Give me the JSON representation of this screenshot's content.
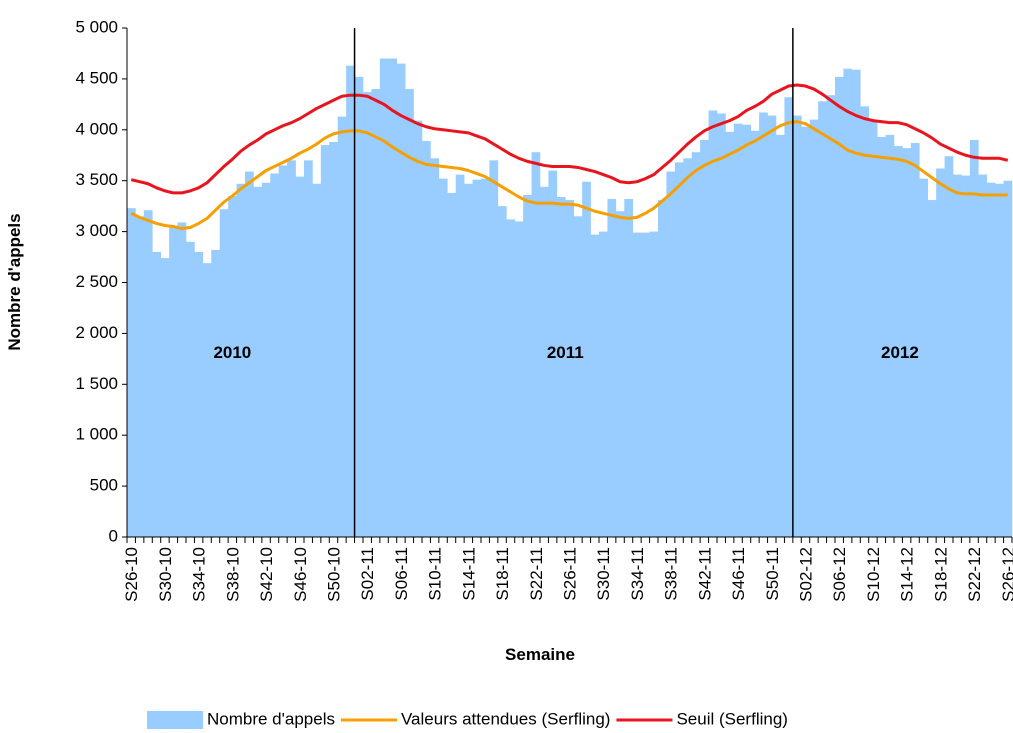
{
  "chart_data": {
    "type": "bar-line",
    "x_label": "Semaine",
    "y_label": "Nombre d'appels",
    "ylim": [
      0,
      5000
    ],
    "yticks": [
      0,
      500,
      {
        "value": 1000,
        "label": "1 000"
      },
      {
        "value": 1500,
        "label": "1 500"
      },
      {
        "value": 2000,
        "label": "2 000"
      },
      {
        "value": 2500,
        "label": "2 500"
      },
      {
        "value": 3000,
        "label": "3 000"
      },
      {
        "value": 3500,
        "label": "3 500"
      },
      {
        "value": 4000,
        "label": "4 000"
      },
      {
        "value": 4500,
        "label": "4 500"
      },
      {
        "value": 5000,
        "label": "5 000"
      }
    ],
    "grid": false,
    "legend": "bottom",
    "annotations": [
      "2010",
      "2011",
      "2012"
    ],
    "categories": [
      "S26-10",
      null,
      null,
      null,
      "S30-10",
      null,
      null,
      null,
      "S34-10",
      null,
      null,
      null,
      "S38-10",
      null,
      null,
      null,
      "S42-10",
      null,
      null,
      null,
      "S46-10",
      null,
      null,
      null,
      "S50-10",
      null,
      null,
      null,
      "S02-11",
      null,
      null,
      null,
      "S06-11",
      null,
      null,
      null,
      "S10-11",
      null,
      null,
      null,
      "S14-11",
      null,
      null,
      null,
      "S18-11",
      null,
      null,
      null,
      "S22-11",
      null,
      null,
      null,
      "S26-11",
      null,
      null,
      null,
      "S30-11",
      null,
      null,
      null,
      "S34-11",
      null,
      null,
      null,
      "S38-11",
      null,
      null,
      null,
      "S42-11",
      null,
      null,
      null,
      "S46-11",
      null,
      null,
      null,
      "S50-11",
      null,
      null,
      null,
      "S02-12",
      null,
      null,
      null,
      "S06-12",
      null,
      null,
      null,
      "S10-12",
      null,
      null,
      null,
      "S14-12",
      null,
      null,
      null,
      "S18-12",
      null,
      null,
      null,
      "S22-12",
      null,
      null,
      null,
      "S26-12"
    ],
    "series": [
      {
        "name": "Nombre d'appels",
        "type": "bar",
        "color": "#99ccff",
        "values": [
          3230,
          3150,
          3210,
          2800,
          2740,
          3060,
          3090,
          2900,
          2800,
          2690,
          2820,
          3220,
          3350,
          3470,
          3590,
          3440,
          3480,
          3570,
          3650,
          3700,
          3540,
          3700,
          3470,
          3850,
          3880,
          4130,
          4630,
          4520,
          4370,
          4400,
          4700,
          4700,
          4650,
          4400,
          4090,
          3890,
          3720,
          3520,
          3380,
          3560,
          3470,
          3510,
          3520,
          3700,
          3250,
          3120,
          3100,
          3360,
          3780,
          3440,
          3600,
          3340,
          3310,
          3150,
          3490,
          2970,
          3000,
          3320,
          3200,
          3320,
          2990,
          2990,
          3000,
          3310,
          3590,
          3680,
          3720,
          3780,
          3900,
          4190,
          4160,
          3980,
          4060,
          4050,
          3990,
          4170,
          4140,
          3950,
          4320,
          4140,
          4030,
          4100,
          4280,
          4340,
          4520,
          4600,
          4590,
          4230,
          4080,
          3930,
          3950,
          3840,
          3820,
          3870,
          3520,
          3310,
          3620,
          3740,
          3560,
          3550,
          3900,
          3560,
          3480,
          3470,
          3500
        ]
      },
      {
        "name": "Valeurs attendues (Serfling)",
        "type": "line",
        "color": "#f5a000",
        "values": [
          3180,
          3140,
          3110,
          3080,
          3060,
          3050,
          3030,
          3040,
          3080,
          3130,
          3210,
          3290,
          3350,
          3420,
          3480,
          3540,
          3600,
          3640,
          3680,
          3720,
          3770,
          3810,
          3860,
          3920,
          3960,
          3980,
          3990,
          3990,
          3970,
          3930,
          3890,
          3830,
          3780,
          3730,
          3690,
          3660,
          3650,
          3640,
          3630,
          3620,
          3600,
          3570,
          3540,
          3490,
          3440,
          3390,
          3340,
          3300,
          3280,
          3280,
          3280,
          3270,
          3270,
          3260,
          3230,
          3200,
          3180,
          3160,
          3140,
          3130,
          3140,
          3180,
          3230,
          3300,
          3370,
          3450,
          3530,
          3600,
          3650,
          3690,
          3720,
          3760,
          3800,
          3850,
          3890,
          3940,
          3990,
          4040,
          4070,
          4080,
          4060,
          4010,
          3960,
          3910,
          3860,
          3800,
          3770,
          3750,
          3740,
          3730,
          3720,
          3710,
          3690,
          3650,
          3590,
          3530,
          3470,
          3420,
          3380,
          3370,
          3370,
          3360,
          3360,
          3360,
          3360
        ]
      },
      {
        "name": "Seuil (Serfling)",
        "type": "line",
        "color": "#e8141e",
        "values": [
          3510,
          3490,
          3470,
          3430,
          3400,
          3380,
          3380,
          3400,
          3430,
          3480,
          3560,
          3640,
          3710,
          3790,
          3850,
          3900,
          3960,
          4000,
          4040,
          4070,
          4110,
          4160,
          4210,
          4250,
          4290,
          4330,
          4340,
          4340,
          4330,
          4290,
          4250,
          4190,
          4140,
          4100,
          4060,
          4030,
          4010,
          4000,
          3990,
          3980,
          3970,
          3940,
          3910,
          3860,
          3810,
          3760,
          3720,
          3690,
          3670,
          3650,
          3640,
          3640,
          3640,
          3630,
          3610,
          3590,
          3560,
          3530,
          3490,
          3480,
          3490,
          3520,
          3560,
          3630,
          3700,
          3780,
          3860,
          3930,
          3990,
          4030,
          4060,
          4090,
          4130,
          4190,
          4230,
          4280,
          4350,
          4390,
          4430,
          4440,
          4430,
          4400,
          4350,
          4290,
          4230,
          4180,
          4140,
          4110,
          4090,
          4080,
          4070,
          4070,
          4050,
          4010,
          3970,
          3920,
          3860,
          3820,
          3780,
          3750,
          3730,
          3720,
          3720,
          3720,
          3700
        ]
      }
    ]
  }
}
